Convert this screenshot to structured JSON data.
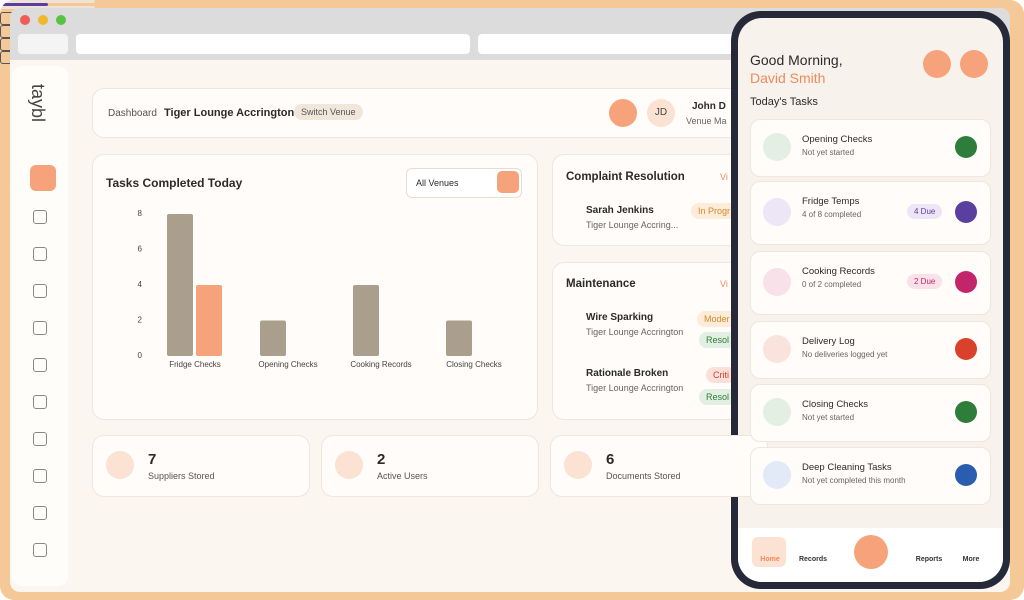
{
  "chart_data": {
    "type": "bar",
    "title": "Tasks Completed Today",
    "categories": [
      "Fridge Checks",
      "Opening Checks",
      "Cooking Records",
      "Closing Checks"
    ],
    "series": [
      {
        "color": "#a99f8c",
        "values": [
          8,
          2,
          4,
          2
        ]
      },
      {
        "color": "#f6a27b",
        "values": [
          4,
          0,
          0,
          0
        ]
      }
    ],
    "ylim": [
      0,
      8
    ],
    "yticks": [
      0,
      2,
      4,
      6,
      8
    ],
    "grid": false
  },
  "filter": "All Venues",
  "sidebar": {
    "logo": "taybl"
  },
  "header": {
    "breadcrumb": "Dashboard",
    "venue": "Tiger Lounge Accrington",
    "switch": "Switch Venue",
    "initials": "JD",
    "user": "John D",
    "role": "Venue Ma"
  },
  "complaints": {
    "title": "Complaint Resolution",
    "link": "Vi",
    "items": [
      {
        "name": "Sarah Jenkins",
        "venue": "Tiger Lounge Accring...",
        "status": "In Progr"
      }
    ]
  },
  "maintenance": {
    "title": "Maintenance",
    "link": "Vi",
    "items": [
      {
        "name": "Wire Sparking",
        "venue": "Tiger Lounge Accrington",
        "severity": "Moder",
        "status": "Resol"
      },
      {
        "name": "Rationale Broken",
        "venue": "Tiger Lounge Accrington",
        "severity": "Criti",
        "status": "Resol"
      }
    ]
  },
  "stats": [
    {
      "value": "7",
      "label": "Suppliers Stored"
    },
    {
      "value": "2",
      "label": "Active Users"
    },
    {
      "value": "6",
      "label": "Documents Stored"
    }
  ],
  "phone": {
    "greeting": "Good Morning,",
    "name": "David Smith",
    "section": "Today's Tasks",
    "tasks": [
      {
        "title": "Opening Checks",
        "status": "Not yet started",
        "color": "#2e7d3a",
        "tint": "#e3efe3"
      },
      {
        "title": "Fridge Temps",
        "status": "4 of 8 completed",
        "badge": "4 Due",
        "progress": 50,
        "color": "#5b3fa0",
        "tint": "#ece6f6"
      },
      {
        "title": "Cooking Records",
        "status": "0 of 2 completed",
        "badge": "2 Due",
        "progress": 0,
        "color": "#c2256a",
        "tint": "#f9e1ea"
      },
      {
        "title": "Delivery Log",
        "status": "No deliveries logged yet",
        "color": "#d9412b",
        "tint": "#fbe3dd"
      },
      {
        "title": "Closing Checks",
        "status": "Not yet started",
        "color": "#2e7d3a",
        "tint": "#e3efe3"
      },
      {
        "title": "Deep Cleaning Tasks",
        "status": "Not yet completed this month",
        "color": "#2a5db0",
        "tint": "#e2eaf7"
      }
    ],
    "nav": [
      "Home",
      "Records",
      "Reports",
      "More"
    ]
  }
}
